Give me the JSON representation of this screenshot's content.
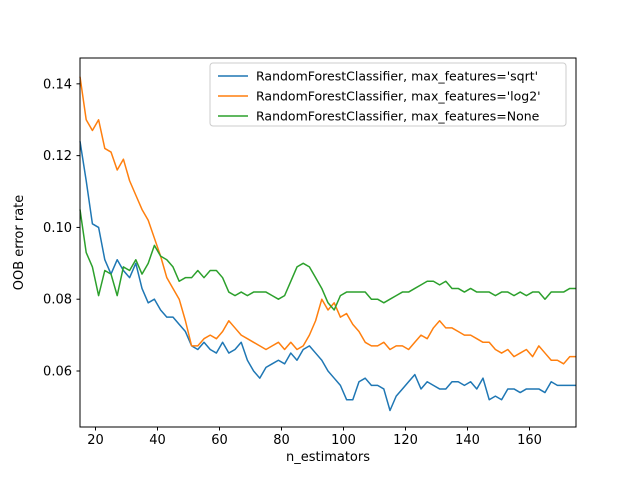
{
  "chart_data": {
    "type": "line",
    "title": "",
    "xlabel": "n_estimators",
    "ylabel": "OOB error rate",
    "xlim": [
      15,
      175
    ],
    "ylim": [
      0.0444,
      0.1472
    ],
    "xticks": [
      20,
      40,
      60,
      80,
      100,
      120,
      140,
      160
    ],
    "yticks": [
      0.06,
      0.08,
      0.1,
      0.12,
      0.14
    ],
    "grid": false,
    "legend_position": "upper right inside",
    "background": "#ffffff",
    "x": [
      15,
      17,
      19,
      21,
      23,
      25,
      27,
      29,
      31,
      33,
      35,
      37,
      39,
      41,
      43,
      45,
      47,
      49,
      51,
      53,
      55,
      57,
      59,
      61,
      63,
      65,
      67,
      69,
      71,
      73,
      75,
      77,
      79,
      81,
      83,
      85,
      87,
      89,
      91,
      93,
      95,
      97,
      99,
      101,
      103,
      105,
      107,
      109,
      111,
      113,
      115,
      117,
      119,
      121,
      123,
      125,
      127,
      129,
      131,
      133,
      135,
      137,
      139,
      141,
      143,
      145,
      147,
      149,
      151,
      153,
      155,
      157,
      159,
      161,
      163,
      165,
      167,
      169,
      171,
      173,
      175
    ],
    "series": [
      {
        "name": "RandomForestClassifier, max_features='sqrt'",
        "color": "#1f77b4",
        "values": [
          0.124,
          0.113,
          0.101,
          0.1,
          0.091,
          0.087,
          0.091,
          0.088,
          0.086,
          0.09,
          0.083,
          0.079,
          0.08,
          0.077,
          0.075,
          0.075,
          0.073,
          0.071,
          0.067,
          0.066,
          0.068,
          0.066,
          0.065,
          0.068,
          0.065,
          0.066,
          0.068,
          0.063,
          0.06,
          0.058,
          0.061,
          0.062,
          0.063,
          0.062,
          0.065,
          0.063,
          0.066,
          0.067,
          0.065,
          0.063,
          0.06,
          0.058,
          0.056,
          0.052,
          0.052,
          0.057,
          0.058,
          0.056,
          0.056,
          0.055,
          0.049,
          0.053,
          0.055,
          0.057,
          0.059,
          0.055,
          0.057,
          0.056,
          0.055,
          0.055,
          0.057,
          0.057,
          0.056,
          0.057,
          0.055,
          0.058,
          0.052,
          0.053,
          0.052,
          0.055,
          0.055,
          0.054,
          0.055,
          0.055,
          0.055,
          0.054,
          0.057,
          0.056,
          0.056,
          0.056,
          0.056
        ]
      },
      {
        "name": "RandomForestClassifier, max_features='log2'",
        "color": "#ff7f0e",
        "values": [
          0.142,
          0.13,
          0.127,
          0.13,
          0.122,
          0.121,
          0.116,
          0.119,
          0.113,
          0.109,
          0.105,
          0.102,
          0.097,
          0.092,
          0.086,
          0.083,
          0.08,
          0.074,
          0.067,
          0.067,
          0.069,
          0.07,
          0.069,
          0.071,
          0.074,
          0.072,
          0.07,
          0.069,
          0.068,
          0.067,
          0.066,
          0.067,
          0.068,
          0.066,
          0.068,
          0.066,
          0.067,
          0.07,
          0.074,
          0.08,
          0.077,
          0.079,
          0.075,
          0.076,
          0.073,
          0.071,
          0.068,
          0.067,
          0.067,
          0.068,
          0.066,
          0.067,
          0.067,
          0.066,
          0.068,
          0.07,
          0.069,
          0.072,
          0.074,
          0.072,
          0.072,
          0.071,
          0.07,
          0.07,
          0.069,
          0.068,
          0.068,
          0.066,
          0.065,
          0.066,
          0.064,
          0.065,
          0.066,
          0.064,
          0.067,
          0.065,
          0.063,
          0.063,
          0.062,
          0.064,
          0.064
        ]
      },
      {
        "name": "RandomForestClassifier, max_features=None",
        "color": "#2ca02c",
        "values": [
          0.105,
          0.093,
          0.089,
          0.081,
          0.088,
          0.087,
          0.081,
          0.089,
          0.088,
          0.091,
          0.087,
          0.09,
          0.095,
          0.092,
          0.091,
          0.089,
          0.085,
          0.086,
          0.086,
          0.088,
          0.086,
          0.088,
          0.088,
          0.086,
          0.082,
          0.081,
          0.082,
          0.081,
          0.082,
          0.082,
          0.082,
          0.081,
          0.08,
          0.081,
          0.085,
          0.089,
          0.09,
          0.089,
          0.086,
          0.083,
          0.079,
          0.077,
          0.081,
          0.082,
          0.082,
          0.082,
          0.082,
          0.08,
          0.08,
          0.079,
          0.08,
          0.081,
          0.082,
          0.082,
          0.083,
          0.084,
          0.085,
          0.085,
          0.084,
          0.085,
          0.083,
          0.083,
          0.082,
          0.083,
          0.082,
          0.082,
          0.082,
          0.081,
          0.082,
          0.082,
          0.081,
          0.082,
          0.081,
          0.082,
          0.082,
          0.08,
          0.082,
          0.082,
          0.082,
          0.083,
          0.083
        ]
      }
    ]
  }
}
